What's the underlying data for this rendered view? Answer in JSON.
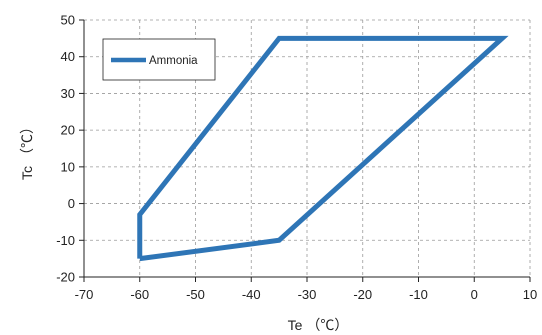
{
  "chart_data": {
    "type": "line",
    "xlabel": "Te （℃）",
    "ylabel": "Tc （℃）",
    "xlim": [
      -70,
      10
    ],
    "ylim": [
      -20,
      50
    ],
    "xticks": [
      "-70",
      "-60",
      "-50",
      "-40",
      "-30",
      "-20",
      "-10",
      "0",
      "10"
    ],
    "yticks": [
      "-20",
      "-10",
      "0",
      "10",
      "20",
      "30",
      "40",
      "50"
    ],
    "grid": true,
    "legend": "top-left",
    "series": [
      {
        "name": "Ammonia",
        "color": "#2e75b6",
        "closed": true,
        "points": [
          [
            -60,
            -15
          ],
          [
            -60,
            -3
          ],
          [
            -35,
            45
          ],
          [
            5,
            45
          ],
          [
            -35,
            -10
          ],
          [
            -60,
            -15
          ]
        ]
      }
    ]
  }
}
